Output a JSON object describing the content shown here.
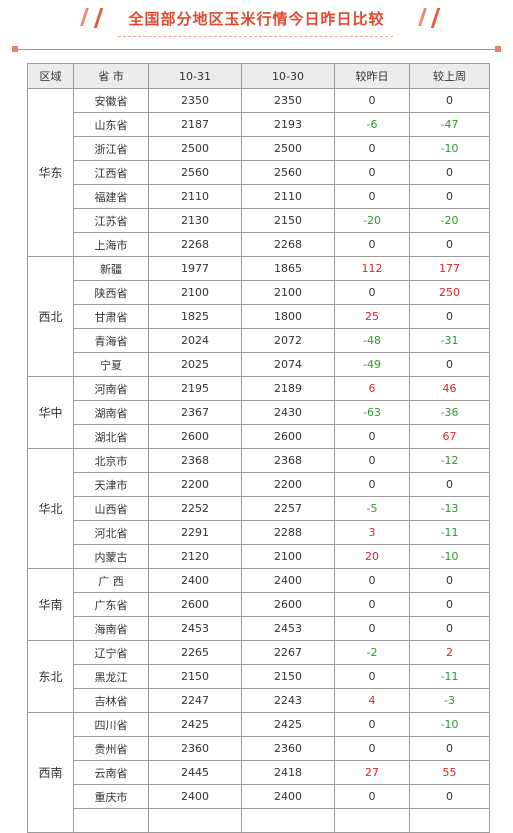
{
  "title": "全国部分地区玉米行情今日昨日比较",
  "columns": [
    "区域",
    "省 市",
    "10-31",
    "10-30",
    "较昨日",
    "较上周"
  ],
  "groups": [
    {
      "region": "华东",
      "rows": [
        [
          "安徽省",
          "2350",
          "2350",
          "0",
          "0"
        ],
        [
          "山东省",
          "2187",
          "2193",
          "-6",
          "-47"
        ],
        [
          "浙江省",
          "2500",
          "2500",
          "0",
          "-10"
        ],
        [
          "江西省",
          "2560",
          "2560",
          "0",
          "0"
        ],
        [
          "福建省",
          "2110",
          "2110",
          "0",
          "0"
        ],
        [
          "江苏省",
          "2130",
          "2150",
          "-20",
          "-20"
        ],
        [
          "上海市",
          "2268",
          "2268",
          "0",
          "0"
        ]
      ]
    },
    {
      "region": "西北",
      "rows": [
        [
          "新疆",
          "1977",
          "1865",
          "112",
          "177"
        ],
        [
          "陕西省",
          "2100",
          "2100",
          "0",
          "250"
        ],
        [
          "甘肃省",
          "1825",
          "1800",
          "25",
          "0"
        ],
        [
          "青海省",
          "2024",
          "2072",
          "-48",
          "-31"
        ],
        [
          "宁夏",
          "2025",
          "2074",
          "-49",
          "0"
        ]
      ]
    },
    {
      "region": "华中",
      "rows": [
        [
          "河南省",
          "2195",
          "2189",
          "6",
          "46"
        ],
        [
          "湖南省",
          "2367",
          "2430",
          "-63",
          "-36"
        ],
        [
          "湖北省",
          "2600",
          "2600",
          "0",
          "67"
        ]
      ]
    },
    {
      "region": "华北",
      "rows": [
        [
          "北京市",
          "2368",
          "2368",
          "0",
          "-12"
        ],
        [
          "天津市",
          "2200",
          "2200",
          "0",
          "0"
        ],
        [
          "山西省",
          "2252",
          "2257",
          "-5",
          "-13"
        ],
        [
          "河北省",
          "2291",
          "2288",
          "3",
          "-11"
        ],
        [
          "内蒙古",
          "2120",
          "2100",
          "20",
          "-10"
        ]
      ]
    },
    {
      "region": "华南",
      "rows": [
        [
          "广 西",
          "2400",
          "2400",
          "0",
          "0"
        ],
        [
          "广东省",
          "2600",
          "2600",
          "0",
          "0"
        ],
        [
          "海南省",
          "2453",
          "2453",
          "0",
          "0"
        ]
      ]
    },
    {
      "region": "东北",
      "rows": [
        [
          "辽宁省",
          "2265",
          "2267",
          "-2",
          "2"
        ],
        [
          "黑龙江",
          "2150",
          "2150",
          "0",
          "-11"
        ],
        [
          "吉林省",
          "2247",
          "2243",
          "4",
          "-3"
        ]
      ]
    },
    {
      "region": "西南",
      "rows": [
        [
          "四川省",
          "2425",
          "2425",
          "0",
          "-10"
        ],
        [
          "贵州省",
          "2360",
          "2360",
          "0",
          "0"
        ],
        [
          "云南省",
          "2445",
          "2418",
          "27",
          "55"
        ],
        [
          "重庆市",
          "2400",
          "2400",
          "0",
          "0"
        ],
        [
          "",
          "",
          "",
          "",
          ""
        ]
      ]
    }
  ]
}
